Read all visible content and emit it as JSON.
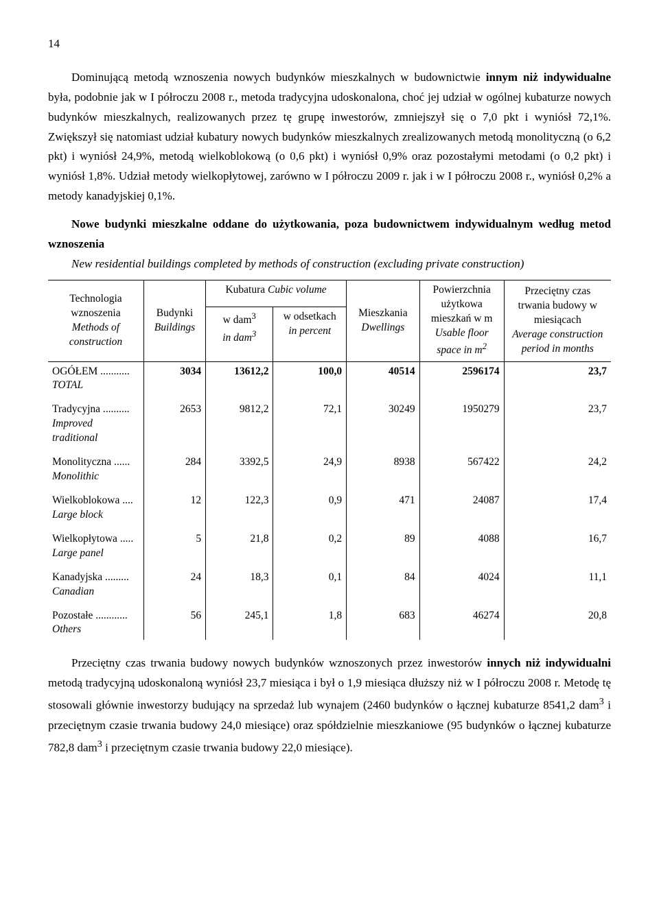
{
  "page_number": "14",
  "para1_a": "Dominującą metodą wznoszenia nowych budynków mieszkalnych w budownictwie ",
  "para1_b": "innym niż indywidualne",
  "para1_c": " była, podobnie jak w I półroczu 2008 r., metoda tradycyjna udoskonalona, choć jej udział w ogólnej kubaturze nowych budynków mieszkalnych, realizowanych przez tę grupę inwestorów, zmniejszył się o 7,0 pkt i wyniósł 72,1%. Zwiększył się natomiast udział kubatury nowych budynków mieszkalnych zrealizowanych metodą monolityczną (o 6,2 pkt) i wyniósł 24,9%, metodą wielkoblokową (o 0,6 pkt) i wyniósł 0,9% oraz pozostałymi metodami (o  0,2 pkt) i wyniósł 1,8%. Udział metody wielkopłytowej, zarówno w I półroczu  2009 r. jak i w I półroczu 2008 r., wyniósł 0,2%  a  metody kanadyjskiej 0,1%.",
  "tbl_title_a": "Nowe budynki mieszkalne oddane do użytkowania, poza budownictwem indywidualnym według metod wznoszenia",
  "tbl_title_b": "New residential buildings completed by methods of construction (excluding private construction)",
  "head": {
    "tech_a": "Technologia wznoszenia",
    "tech_b": "Methods of construction",
    "bud_a": "Budynki",
    "bud_b": "Buildings",
    "cubic": "Kubatura ",
    "cubic_i": "Cubic volume",
    "dam_a": "w dam",
    "dam_b": "in dam",
    "sup3": "3",
    "pct_a": "w odsetkach",
    "pct_b": "in percent",
    "dw_a": "Mieszkania",
    "dw_b": "Dwellings",
    "pow_a": "Powierzchnia użytkowa mieszkań w m",
    "pow_b": "Usable floor space in m",
    "sup2": "2",
    "time_a": "Przeciętny czas trwania budowy w miesiącach",
    "time_b": "Average construction period in months"
  },
  "rows": [
    {
      "l1": "OGÓŁEM ...........",
      "l2": "TOTAL",
      "c1": "3034",
      "c2": "13612,2",
      "c3": "100,0",
      "c4": "40514",
      "c5": "2596174",
      "c6": "23,7",
      "bold": true
    },
    {
      "l1": "Tradycyjna ..........",
      "l2": "Improved traditional",
      "c1": "2653",
      "c2": "9812,2",
      "c3": "72,1",
      "c4": "30249",
      "c5": "1950279",
      "c6": "23,7"
    },
    {
      "l1": "Monolityczna ......",
      "l2": "Monolithic",
      "c1": "284",
      "c2": "3392,5",
      "c3": "24,9",
      "c4": "8938",
      "c5": "567422",
      "c6": "24,2"
    },
    {
      "l1": "Wielkoblokowa ....",
      "l2": "Large block",
      "c1": "12",
      "c2": "122,3",
      "c3": "0,9",
      "c4": "471",
      "c5": "24087",
      "c6": "17,4"
    },
    {
      "l1": "Wielkopłytowa .....",
      "l2": "Large panel",
      "c1": "5",
      "c2": "21,8",
      "c3": "0,2",
      "c4": "89",
      "c5": "4088",
      "c6": "16,7"
    },
    {
      "l1": "Kanadyjska .........",
      "l2": "Canadian",
      "c1": "24",
      "c2": "18,3",
      "c3": "0,1",
      "c4": "84",
      "c5": "4024",
      "c6": "11,1"
    },
    {
      "l1": "Pozostałe ............",
      "l2": "Others",
      "c1": "56",
      "c2": "245,1",
      "c3": "1,8",
      "c4": "683",
      "c5": "46274",
      "c6": "20,8"
    }
  ],
  "para2_a": "Przeciętny czas trwania budowy nowych budynków wznoszonych przez inwestorów ",
  "para2_b": "innych niż indywidualni",
  "para2_c": " metodą tradycyjną udoskonaloną wyniósł 23,7 miesiąca i był o 1,9 miesiąca dłuższy niż w I półroczu 2008 r. Metodę tę stosowali głównie inwestorzy budujący na sprzedaż lub wynajem (2460 budynków o łącznej kubaturze 8541,2 dam",
  "para2_d": " i przeciętnym czasie trwania budowy 24,0 miesiące) oraz spółdzielnie mieszkaniowe (95 budynków o łącznej kubaturze 782,8 dam",
  "para2_e": " i przeciętnym czasie trwania budowy 22,0 miesiące)."
}
